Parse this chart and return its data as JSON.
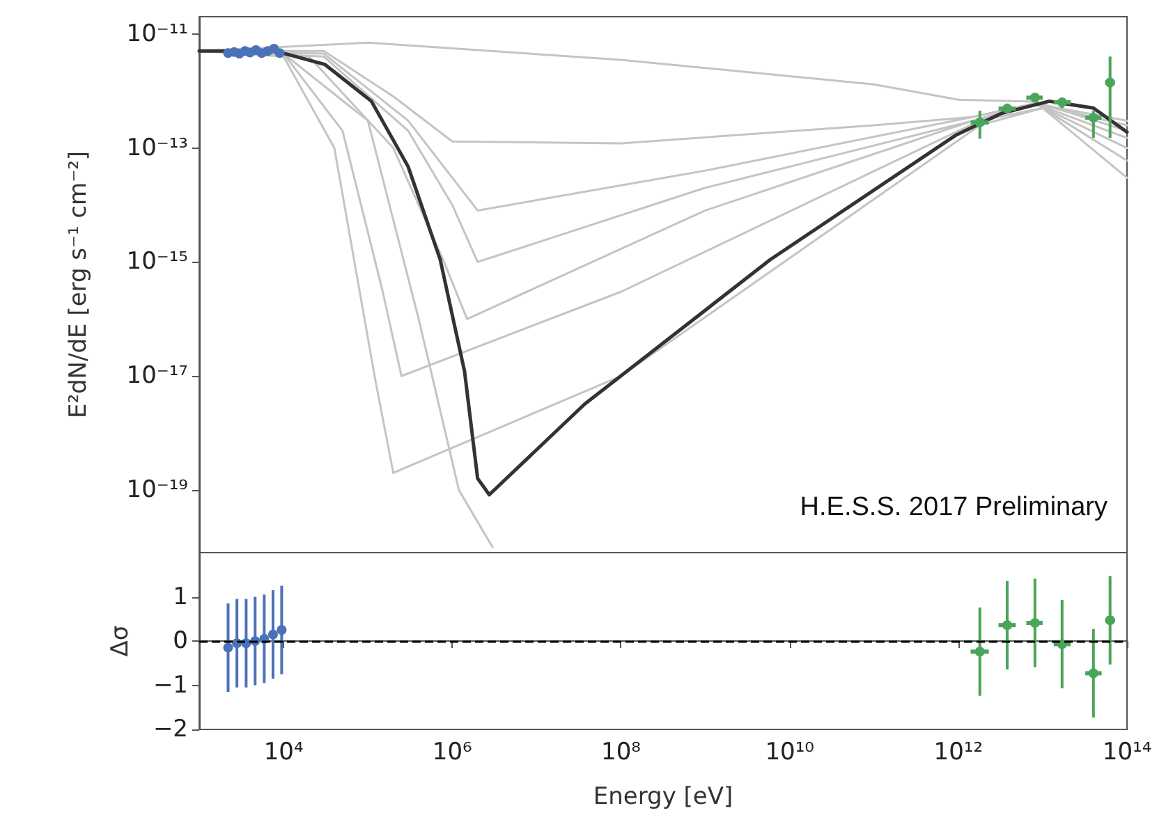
{
  "chart_data": [
    {
      "type": "line",
      "ylabel": "E²dN/dE [erg s⁻¹ cm⁻²]",
      "log": "xy",
      "xlim": [
        1000,
        100000000000000
      ],
      "ylim": [
        8e-21,
        2e-11
      ],
      "yticks": [
        {
          "value": 1e-19,
          "label": "10⁻¹⁹"
        },
        {
          "value": 1e-17,
          "label": "10⁻¹⁷"
        },
        {
          "value": 1e-15,
          "label": "10⁻¹⁵"
        },
        {
          "value": 1e-13,
          "label": "10⁻¹³"
        },
        {
          "value": 1e-11,
          "label": "10⁻¹¹"
        }
      ],
      "tick_labels": "y",
      "annotations": [
        "H.E.S.S. 2017 Preliminary"
      ],
      "series": [
        {
          "color": "#c4c4c4",
          "marker": "none",
          "x": [
            1000,
            100000,
            100000000,
            100000000000,
            1000000000000,
            8000000000000,
            100000000000000
          ],
          "values": [
            5e-12,
            7e-12,
            3.5e-12,
            1.3e-12,
            7e-13,
            6.5e-13,
            2e-13
          ]
        },
        {
          "color": "#c4c4c4",
          "marker": "none",
          "x": [
            1000,
            30000,
            200000,
            1000000,
            100000000,
            100000000000,
            1500000000000,
            8000000000000,
            100000000000000
          ],
          "values": [
            5e-12,
            5e-12,
            8e-13,
            1.3e-13,
            1.2e-13,
            2.5e-13,
            3.5e-13,
            6e-13,
            2.5e-13
          ]
        },
        {
          "color": "#c4c4c4",
          "marker": "none",
          "x": [
            1000,
            30000,
            300000,
            2000000,
            1000000000,
            1500000000000,
            8000000000000,
            100000000000000
          ],
          "values": [
            5e-12,
            4.5e-12,
            3e-13,
            8e-15,
            4e-14,
            3.5e-13,
            6e-13,
            3e-13
          ]
        },
        {
          "color": "#c4c4c4",
          "marker": "none",
          "x": [
            1000,
            30000,
            300000,
            1000000,
            2000000,
            1000000000,
            1500000000000,
            8000000000000,
            100000000000000
          ],
          "values": [
            5e-12,
            4e-12,
            2e-13,
            1e-14,
            1e-15,
            2e-14,
            3e-13,
            6e-13,
            1.5e-13
          ]
        },
        {
          "color": "#c4c4c4",
          "marker": "none",
          "x": [
            1000,
            20000,
            200000,
            800000,
            1500000,
            1000000000,
            1500000000000,
            8000000000000,
            100000000000000
          ],
          "values": [
            5e-12,
            4e-12,
            1e-13,
            1e-15,
            1e-16,
            8e-15,
            3e-13,
            6e-13,
            1e-13
          ]
        },
        {
          "color": "#c4c4c4",
          "marker": "none",
          "x": [
            1000,
            10000,
            50000,
            150000,
            250000,
            100000000,
            1800000000000,
            10000000000000,
            100000000000000
          ],
          "values": [
            5e-12,
            4.5e-12,
            2e-13,
            3e-16,
            1e-17,
            3e-16,
            3e-13,
            5e-13,
            6e-14
          ]
        },
        {
          "color": "#c4c4c4",
          "marker": "none",
          "x": [
            1000,
            10000,
            40000,
            120000,
            200000,
            100000000,
            1800000000000,
            10000000000000,
            100000000000000
          ],
          "values": [
            5e-12,
            4e-12,
            1e-13,
            1e-17,
            2e-19,
            1e-17,
            2.5e-13,
            5e-13,
            3e-14
          ]
        },
        {
          "color": "#c4c4c4",
          "marker": "none",
          "x": [
            1000,
            10000,
            100000,
            400000,
            1200000,
            3000000
          ],
          "values": [
            5e-12,
            4.5e-12,
            3e-13,
            1e-16,
            1e-19,
            1e-20
          ]
        },
        {
          "color": "#333333",
          "marker": "none",
          "x": [
            1000,
            8000,
            31000,
            110000,
            300000,
            720000,
            1400000,
            2000000,
            2750000,
            37000000,
            5900000000,
            950000000000,
            3200000000000,
            12000000000000,
            40000000000000,
            100000000000000
          ],
          "values": [
            5e-12,
            5e-12,
            2.9e-12,
            6.6e-13,
            4.7e-14,
            1.1e-15,
            1.2e-17,
            1.6e-19,
            8.3e-20,
            3.2e-18,
            1.1e-15,
            1.7e-13,
            4e-13,
            6.6e-13,
            5e-13,
            1.9e-13
          ]
        },
        {
          "type": "scatter",
          "color": "#4a72b8",
          "marker": "circle",
          "x": [
            2200,
            2600,
            3000,
            3500,
            4000,
            4700,
            5500,
            6500,
            7700,
            9000
          ],
          "values": [
            4.6e-12,
            4.8e-12,
            4.5e-12,
            5e-12,
            4.7e-12,
            5.2e-12,
            4.6e-12,
            5e-12,
            5.5e-12,
            4.6e-12
          ],
          "errors": [
            6e-13,
            6e-13,
            6e-13,
            6e-13,
            6e-13,
            6e-13,
            6e-13,
            6e-13,
            6e-13,
            6e-13
          ]
        },
        {
          "type": "scatter",
          "color": "#4aa55a",
          "marker": "circle",
          "x": [
            1800000000000,
            3800000000000,
            8100000000000,
            17000000000000,
            40000000000000,
            63000000000000
          ],
          "values": [
            2.8e-13,
            4.9e-13,
            7.6e-13,
            6.3e-13,
            3.4e-13,
            1.4e-12
          ],
          "errors": [
            [
              1.45e-13,
              4.5e-13
            ],
            [
              4e-13,
              6e-13
            ],
            [
              6.5e-13,
              9e-13
            ],
            [
              5e-13,
              7.5e-13
            ],
            [
              1.5e-13,
              4.5e-13
            ],
            [
              1.5e-13,
              4e-12
            ]
          ],
          "xerrors": [
            [
              1400000000000,
              2300000000000
            ],
            [
              3000000000000,
              4800000000000
            ],
            [
              6400000000000,
              10000000000000
            ],
            [
              13500000000000,
              21500000000000
            ],
            [
              32000000000000,
              50000000000000
            ],
            [
              55000000000000,
              72000000000000
            ]
          ]
        }
      ]
    },
    {
      "type": "scatter",
      "xlabel": "Energy [eV]",
      "ylabel": "Δσ",
      "log": "x",
      "marker": "circle",
      "xlim": [
        1000,
        100000000000000
      ],
      "ylim": [
        -2,
        2
      ],
      "yticks": [
        {
          "value": -2,
          "label": "−2"
        },
        {
          "value": -1,
          "label": "−1"
        },
        0,
        1
      ],
      "xticks": [
        {
          "value": 10000,
          "label": "10⁴"
        },
        {
          "value": 1000000,
          "label": "10⁶"
        },
        {
          "value": 100000000,
          "label": "10⁸"
        },
        {
          "value": 10000000000,
          "label": "10¹⁰"
        },
        {
          "value": 1000000000000,
          "label": "10¹²"
        },
        {
          "value": 100000000000000,
          "label": "10¹⁴"
        }
      ],
      "ref_lines": [
        {
          "axis": "y",
          "value": 0,
          "color": "#000000",
          "line_style": "dashed"
        }
      ],
      "series": [
        {
          "color": "#4a72b8",
          "x": [
            2200,
            2800,
            3600,
            4600,
            5900,
            7500,
            9500
          ],
          "values": [
            -0.15,
            -0.05,
            -0.05,
            0,
            0.05,
            0.15,
            0.25
          ],
          "errors": [
            1,
            1,
            1,
            1,
            1,
            1,
            1
          ]
        },
        {
          "color": "#4aa55a",
          "x": [
            1800000000000,
            3800000000000,
            8100000000000,
            17000000000000,
            40000000000000,
            63000000000000
          ],
          "values": [
            -0.24,
            0.36,
            0.41,
            -0.07,
            -0.73,
            0.47
          ],
          "errors": [
            1,
            1,
            1,
            1,
            1,
            1
          ],
          "xerrors": [
            [
              1400000000000,
              2300000000000
            ],
            [
              3000000000000,
              4800000000000
            ],
            [
              6400000000000,
              10000000000000
            ],
            [
              13500000000000,
              21500000000000
            ],
            [
              32000000000000,
              50000000000000
            ],
            [
              55000000000000,
              72000000000000
            ]
          ]
        }
      ]
    }
  ]
}
